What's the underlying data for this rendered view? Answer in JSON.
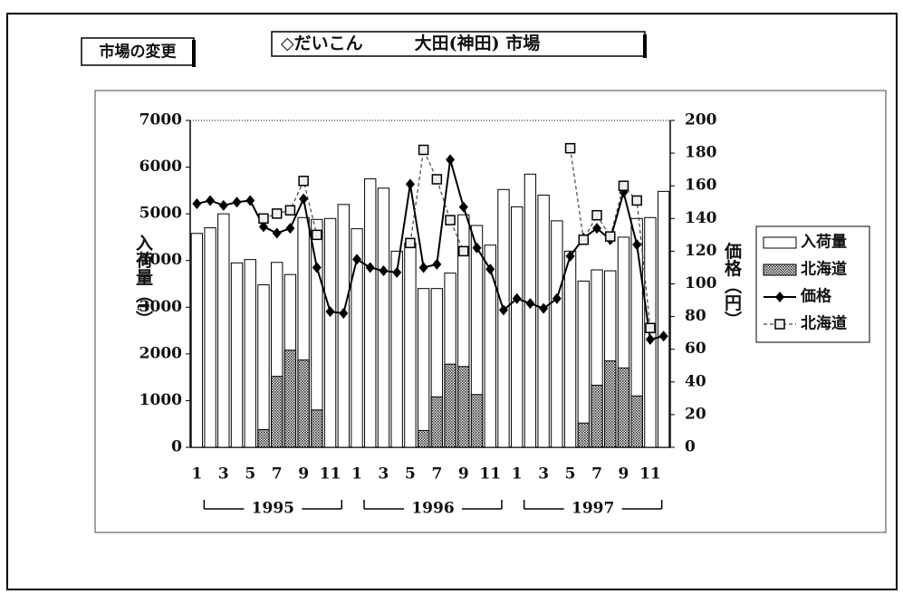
{
  "button": "市場の変更",
  "chart_data": {
    "type": "bar",
    "title": "◇だいこん　　　大田(神田) 市場",
    "y_label": "入荷量（t）",
    "y2_label": "価格（円）",
    "categories": [
      "1",
      null,
      "3",
      null,
      "5",
      null,
      "7",
      null,
      "9",
      null,
      "11",
      null,
      "1",
      null,
      "3",
      null,
      "5",
      null,
      "7",
      null,
      "9",
      null,
      "11",
      null,
      "1",
      null,
      "3",
      null,
      "5",
      null,
      "7",
      null,
      "9",
      null,
      "11",
      null
    ],
    "annotations": [
      "1995",
      "1996",
      "1997"
    ],
    "ylim": [
      0,
      7000
    ],
    "yticks": [
      0,
      1000,
      2000,
      3000,
      4000,
      5000,
      6000,
      7000
    ],
    "y2lim": [
      0,
      200
    ],
    "y2ticks": [
      0,
      20,
      40,
      60,
      80,
      100,
      120,
      140,
      160,
      180,
      200
    ],
    "grid": false,
    "legend": "right",
    "series": [
      {
        "name": "入荷量",
        "type": "bar",
        "color": "#ffffff",
        "values": [
          4580,
          4700,
          5000,
          3950,
          4020,
          3480,
          3960,
          3700,
          4920,
          4880,
          4900,
          5200,
          4680,
          5750,
          5550,
          4200,
          4370,
          3400,
          3400,
          3730,
          4980,
          4750,
          4330,
          5520,
          5150,
          5850,
          5400,
          4850,
          4200,
          3560,
          3800,
          3780,
          4500,
          4900,
          4920,
          5480
        ]
      },
      {
        "name": "北海道",
        "type": "bar",
        "color": "#777777",
        "values": [
          null,
          null,
          null,
          null,
          null,
          380,
          1520,
          2080,
          1870,
          800,
          null,
          null,
          null,
          null,
          null,
          null,
          null,
          360,
          1080,
          1780,
          1730,
          1130,
          null,
          null,
          null,
          null,
          null,
          null,
          null,
          520,
          1330,
          1850,
          1700,
          1100,
          null,
          null
        ]
      },
      {
        "name": "価格",
        "type": "line",
        "axis": "y2",
        "color": "#000000",
        "values": [
          149,
          151,
          148,
          150,
          151,
          135,
          131,
          134,
          152,
          110,
          83,
          82,
          115,
          110,
          108,
          107,
          161,
          110,
          112,
          176,
          147,
          122,
          109,
          84,
          91,
          88,
          85,
          91,
          117,
          128,
          134,
          127,
          156,
          124,
          66,
          68
        ]
      },
      {
        "name": "北海道",
        "type": "line",
        "axis": "y2",
        "color": "#444444",
        "values": [
          null,
          null,
          null,
          null,
          null,
          140,
          143,
          145,
          163,
          130,
          null,
          null,
          null,
          null,
          null,
          null,
          125,
          182,
          164,
          139,
          120,
          null,
          null,
          null,
          null,
          null,
          null,
          null,
          183,
          127,
          142,
          129,
          160,
          151,
          73,
          null
        ]
      }
    ]
  }
}
